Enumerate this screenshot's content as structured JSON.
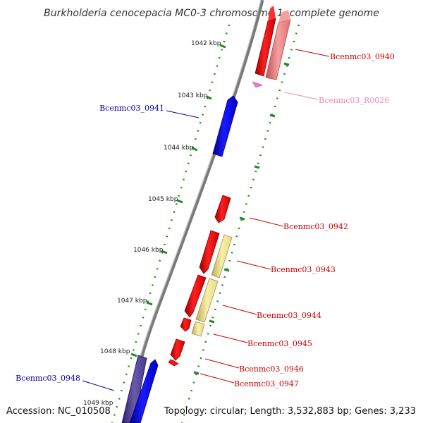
{
  "title": "Burkholderia cenocepacia MC0-3 chromosome 1, complete genome",
  "footer": {
    "accession": "Accession: NC_010508",
    "summary": "Topology: circular; Length: 3,532,883 bp; Genes: 3,233"
  },
  "colors": {
    "forward_gene": "#ff0000",
    "reverse_gene": "#0000ff",
    "rrna": "#f08080",
    "misc": "#f0e68c",
    "forward_label": "#cc0000",
    "reverse_label": "#0000aa",
    "rna_label": "#ee88bb",
    "tick": "#228b22",
    "backbone": "#777777"
  },
  "kbp_labels": [
    {
      "text": "1042 kbp"
    },
    {
      "text": "1043 kbp"
    },
    {
      "text": "1044 kbp"
    },
    {
      "text": "1045 kbp"
    },
    {
      "text": "1046 kbp"
    },
    {
      "text": "1047 kbp"
    },
    {
      "text": "1048 kbp"
    },
    {
      "text": "1049 kbp"
    }
  ],
  "gene_labels": [
    {
      "text": "Bcenmc03_0940",
      "strand": "forward"
    },
    {
      "text": "Bcenmc03_R0026",
      "strand": "rna"
    },
    {
      "text": "Bcenmc03_0941",
      "strand": "reverse"
    },
    {
      "text": "Bcenmc03_0942",
      "strand": "forward"
    },
    {
      "text": "Bcenmc03_0943",
      "strand": "forward"
    },
    {
      "text": "Bcenmc03_0944",
      "strand": "forward"
    },
    {
      "text": "Bcenmc03_0945",
      "strand": "forward"
    },
    {
      "text": "Bcenmc03_0946",
      "strand": "forward"
    },
    {
      "text": "Bcenmc03_0947",
      "strand": "forward"
    },
    {
      "text": "Bcenmc03_0948",
      "strand": "reverse"
    }
  ]
}
